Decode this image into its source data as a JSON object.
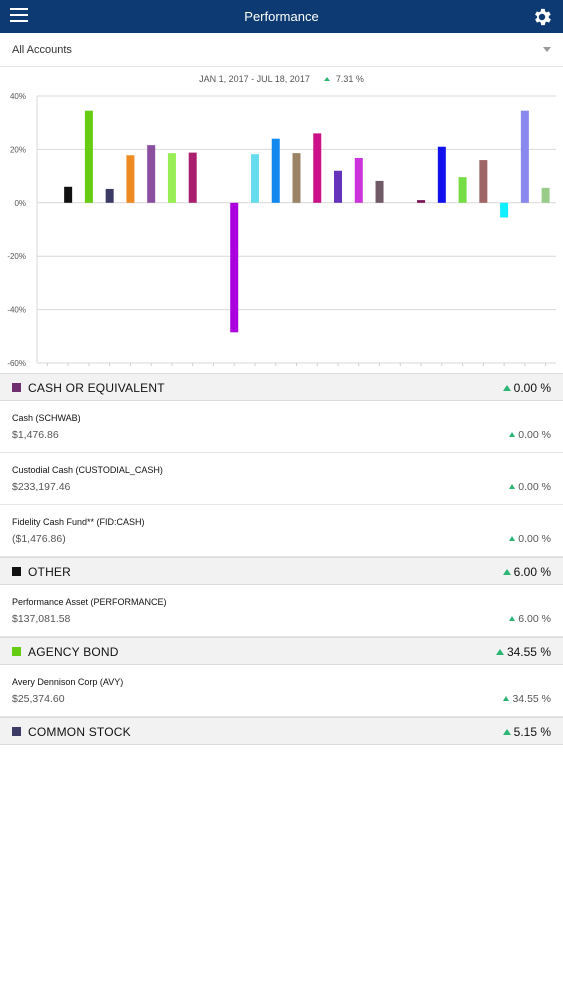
{
  "header": {
    "title": "Performance",
    "menu_icon": "menu-icon",
    "settings_icon": "gear-icon"
  },
  "account_selector": {
    "value": "All Accounts"
  },
  "chart_data": {
    "type": "bar",
    "date_range": "JAN 1, 2017 - JUL 18, 2017",
    "total_return": "7.31 %",
    "ylim": [
      -60,
      40
    ],
    "yticks": [
      "40%",
      "20%",
      "0%",
      "-20%",
      "-40%",
      "-60%"
    ],
    "values": [
      0,
      6,
      34.5,
      5.2,
      17.8,
      21.6,
      18.6,
      18.8,
      0,
      -48.5,
      18.2,
      24,
      18.6,
      26,
      12,
      16.8,
      8.2,
      0,
      1,
      21,
      9.6,
      16,
      -5.5,
      34.5,
      5.6
    ],
    "colors": [
      "#ffffff",
      "#111111",
      "#66cc11",
      "#3b3b66",
      "#ee8a22",
      "#8b4fa0",
      "#99ee55",
      "#aa1f6e",
      "#ffffff",
      "#aa00dd",
      "#66ddee",
      "#1188ee",
      "#9b8466",
      "#cc1188",
      "#6633bb",
      "#cc33dd",
      "#705a66",
      "#ffffff",
      "#7a1155",
      "#1111ee",
      "#77dd44",
      "#a06666",
      "#11eeff",
      "#8888ee",
      "#99cc88"
    ]
  },
  "sections": [
    {
      "name": "CASH OR EQUIVALENT",
      "color": "#6e2f6f",
      "pct": "0.00 %",
      "holdings": [
        {
          "name": "Cash (SCHWAB)",
          "value": "$1,476.86",
          "pct": "0.00 %"
        },
        {
          "name": "Custodial Cash (CUSTODIAL_CASH)",
          "value": "$233,197.46",
          "pct": "0.00 %"
        },
        {
          "name": "Fidelity Cash Fund** (FID:CASH)",
          "value": "($1,476.86)",
          "pct": "0.00 %"
        }
      ]
    },
    {
      "name": "OTHER",
      "color": "#111111",
      "pct": "6.00 %",
      "holdings": [
        {
          "name": "Performance Asset (PERFORMANCE)",
          "value": "$137,081.58",
          "pct": "6.00 %"
        }
      ]
    },
    {
      "name": "AGENCY BOND",
      "color": "#66cc11",
      "pct": "34.55 %",
      "holdings": [
        {
          "name": "Avery Dennison Corp (AVY)",
          "value": "$25,374.60",
          "pct": "34.55 %"
        }
      ]
    },
    {
      "name": "COMMON STOCK",
      "color": "#3b3b66",
      "pct": "5.15 %",
      "holdings": []
    }
  ]
}
